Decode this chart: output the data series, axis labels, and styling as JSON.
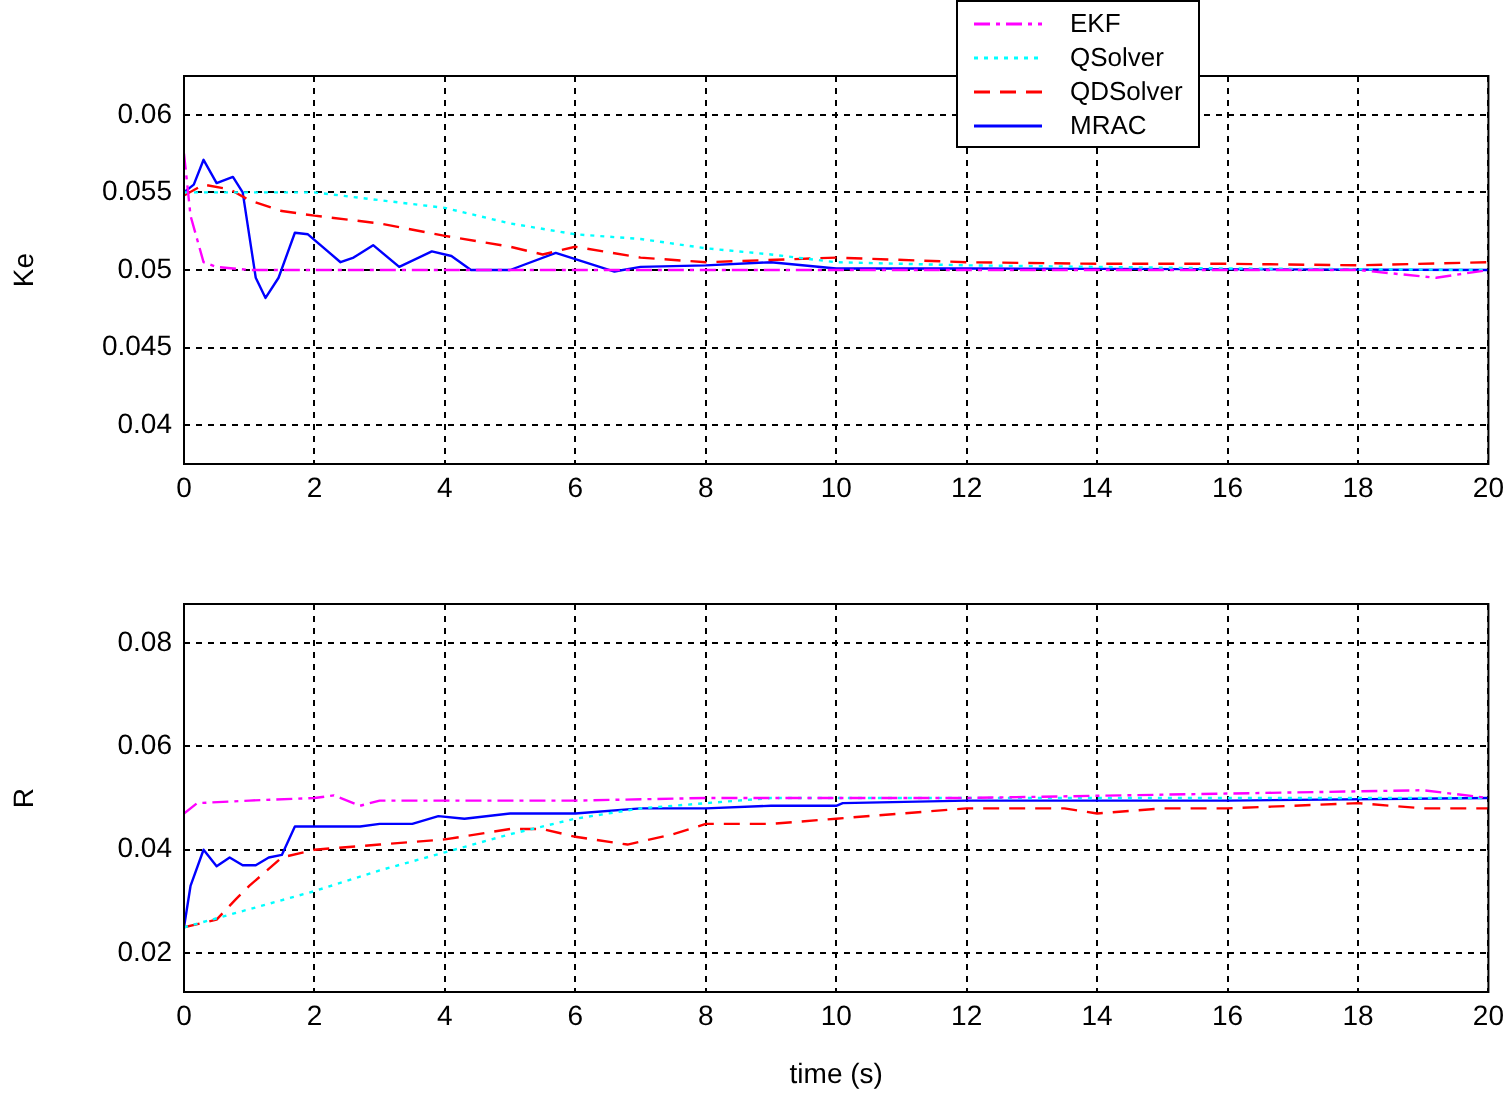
{
  "chart_data": [
    {
      "type": "line",
      "ylabel": "Ke",
      "xlim": [
        0,
        20
      ],
      "xticks": [
        0,
        2,
        4,
        6,
        8,
        10,
        12,
        14,
        16,
        18,
        20
      ],
      "ylim": [
        0.0375,
        0.0625
      ],
      "yticks": [
        0.04,
        0.045,
        0.05,
        0.055,
        0.06
      ],
      "grid": true,
      "legend": "top",
      "marker": "none",
      "series": [
        {
          "name": "EKF",
          "color": "#ff00ff",
          "line_style": "dashdot",
          "x": [
            0,
            0.1,
            0.3,
            0.5,
            1,
            2,
            4,
            6,
            8,
            10,
            12,
            14,
            16,
            18,
            19.2,
            20
          ],
          "values": [
            0.0575,
            0.0535,
            0.0505,
            0.0502,
            0.05,
            0.05,
            0.05,
            0.05,
            0.05,
            0.05,
            0.05,
            0.05,
            0.05,
            0.05,
            0.0495,
            0.05
          ]
        },
        {
          "name": "QSolver",
          "color": "#00ffff",
          "line_style": "dotted",
          "x": [
            0,
            1,
            2,
            3,
            4,
            5,
            6,
            7,
            8,
            9,
            10,
            12,
            14,
            16,
            20
          ],
          "values": [
            0.055,
            0.055,
            0.055,
            0.0545,
            0.054,
            0.053,
            0.0523,
            0.052,
            0.0514,
            0.051,
            0.0505,
            0.0503,
            0.0502,
            0.0501,
            0.05
          ]
        },
        {
          "name": "QDSolver",
          "color": "#ff0000",
          "line_style": "dashed",
          "x": [
            0,
            0.3,
            0.7,
            1,
            1.5,
            2,
            3,
            4,
            5,
            5.5,
            6,
            7,
            8,
            10,
            12,
            14,
            16,
            18,
            20
          ],
          "values": [
            0.0548,
            0.0555,
            0.0552,
            0.0545,
            0.0538,
            0.0535,
            0.053,
            0.0522,
            0.0515,
            0.051,
            0.0515,
            0.0508,
            0.0505,
            0.0508,
            0.0505,
            0.0504,
            0.0504,
            0.0503,
            0.0505
          ]
        },
        {
          "name": "MRAC",
          "color": "#0000ff",
          "line_style": "solid",
          "x": [
            0,
            0.15,
            0.3,
            0.5,
            0.75,
            0.9,
            1.1,
            1.25,
            1.45,
            1.7,
            1.9,
            2.4,
            2.6,
            2.9,
            3.3,
            3.8,
            4.1,
            4.4,
            5,
            5.7,
            6,
            6.6,
            7,
            8,
            9,
            10,
            12,
            20
          ],
          "values": [
            0.055,
            0.0555,
            0.0571,
            0.0556,
            0.056,
            0.055,
            0.0495,
            0.0482,
            0.0495,
            0.0524,
            0.0523,
            0.0505,
            0.0508,
            0.0516,
            0.0502,
            0.0512,
            0.0509,
            0.05,
            0.05,
            0.0511,
            0.0507,
            0.0499,
            0.0502,
            0.0503,
            0.0505,
            0.0501,
            0.0501,
            0.05
          ]
        }
      ]
    },
    {
      "type": "line",
      "xlabel": "time (s)",
      "ylabel": "R",
      "xlim": [
        0,
        20
      ],
      "xticks": [
        0,
        2,
        4,
        6,
        8,
        10,
        12,
        14,
        16,
        18,
        20
      ],
      "ylim": [
        0.0125,
        0.0875
      ],
      "yticks": [
        0.02,
        0.04,
        0.06,
        0.08
      ],
      "grid": true,
      "marker": "none",
      "series": [
        {
          "color": "#ff00ff",
          "line_style": "dashdot",
          "x": [
            0,
            0.2,
            1,
            2,
            2.3,
            2.7,
            3,
            6,
            8,
            12,
            19,
            20
          ],
          "values": [
            0.047,
            0.049,
            0.0495,
            0.05,
            0.0505,
            0.0485,
            0.0495,
            0.0495,
            0.05,
            0.05,
            0.0515,
            0.05
          ]
        },
        {
          "color": "#00ffff",
          "line_style": "dotted",
          "x": [
            0,
            1,
            2,
            3,
            4,
            5,
            6,
            7,
            8,
            9,
            20
          ],
          "values": [
            0.025,
            0.0285,
            0.032,
            0.036,
            0.0395,
            0.043,
            0.046,
            0.048,
            0.049,
            0.05,
            0.05
          ]
        },
        {
          "color": "#ff0000",
          "line_style": "dashed",
          "x": [
            0,
            0.5,
            0.8,
            1,
            1.5,
            2,
            3,
            4,
            5,
            5.5,
            6,
            6.8,
            7.5,
            8,
            9,
            10,
            12,
            13.5,
            14,
            15,
            16,
            18,
            19,
            20
          ],
          "values": [
            0.025,
            0.0265,
            0.0305,
            0.033,
            0.0385,
            0.04,
            0.041,
            0.042,
            0.044,
            0.044,
            0.0425,
            0.041,
            0.043,
            0.045,
            0.045,
            0.046,
            0.048,
            0.048,
            0.047,
            0.048,
            0.048,
            0.049,
            0.048,
            0.048
          ]
        },
        {
          "color": "#0000ff",
          "line_style": "solid",
          "x": [
            0,
            0.1,
            0.3,
            0.5,
            0.7,
            0.9,
            1.1,
            1.3,
            1.5,
            1.7,
            2.7,
            3,
            3.5,
            3.9,
            4.3,
            5,
            6,
            7,
            8,
            9,
            10,
            10.1,
            12,
            16,
            20
          ],
          "values": [
            0.025,
            0.033,
            0.04,
            0.0368,
            0.0385,
            0.037,
            0.037,
            0.0385,
            0.039,
            0.0445,
            0.0445,
            0.045,
            0.045,
            0.0465,
            0.046,
            0.047,
            0.047,
            0.048,
            0.048,
            0.0485,
            0.0485,
            0.049,
            0.0495,
            0.0495,
            0.05
          ]
        }
      ]
    }
  ]
}
